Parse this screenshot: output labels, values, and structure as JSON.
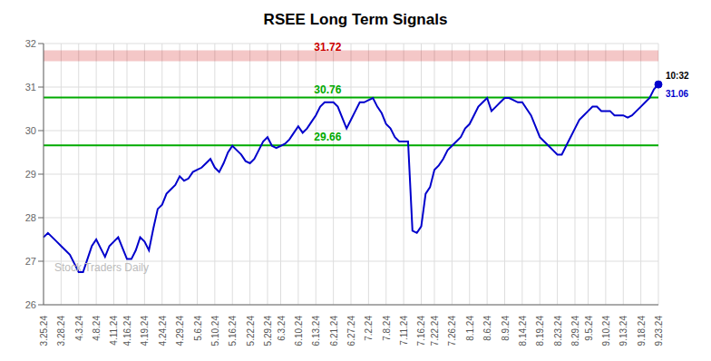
{
  "chart_data": {
    "type": "line",
    "title": "RSEE Long Term Signals",
    "color": "#0000cc",
    "grid": true,
    "ylim": [
      26,
      32
    ],
    "yticks": [
      26,
      27,
      28,
      29,
      30,
      31,
      32
    ],
    "categories": [
      "3.25.24",
      null,
      null,
      null,
      "3.28.24",
      null,
      null,
      null,
      "4.3.24",
      null,
      null,
      null,
      "4.8.24",
      null,
      null,
      null,
      "4.11.24",
      null,
      null,
      "4.16.24",
      null,
      null,
      null,
      "4.19.24",
      null,
      null,
      null,
      "4.24.24",
      null,
      null,
      null,
      "4.29.24",
      null,
      null,
      null,
      "5.6.24",
      null,
      null,
      null,
      "5.10.24",
      null,
      null,
      null,
      "5.16.24",
      null,
      null,
      null,
      "5.22.24",
      null,
      null,
      null,
      "5.29.24",
      null,
      null,
      "6.3.24",
      null,
      null,
      null,
      "6.10.24",
      null,
      null,
      null,
      "6.13.24",
      null,
      null,
      null,
      "6.21.24",
      null,
      null,
      null,
      "6.27.24",
      null,
      null,
      null,
      "7.2.24",
      null,
      null,
      null,
      "7.8.24",
      null,
      null,
      null,
      "7.11.24",
      null,
      null,
      null,
      "7.16.24",
      null,
      null,
      "7.22.24",
      null,
      null,
      null,
      "7.26.24",
      null,
      null,
      null,
      "8.1.24",
      null,
      null,
      null,
      "8.6.24",
      null,
      null,
      null,
      "8.9.24",
      null,
      null,
      null,
      "8.14.24",
      null,
      null,
      null,
      "8.19.24",
      null,
      null,
      null,
      "8.23.24",
      null,
      null,
      null,
      "8.29.24",
      null,
      null,
      "9.5.24",
      null,
      null,
      null,
      "9.10.24",
      null,
      null,
      null,
      "9.13.24",
      null,
      null,
      null,
      "9.18.24",
      null,
      null,
      null,
      "9.23.24"
    ],
    "values": [
      27.55,
      27.65,
      27.55,
      27.45,
      27.35,
      27.25,
      27.15,
      26.95,
      26.75,
      26.75,
      27.05,
      27.35,
      27.5,
      27.3,
      27.1,
      27.35,
      27.45,
      27.55,
      27.3,
      27.05,
      27.05,
      27.25,
      27.55,
      27.45,
      27.25,
      27.75,
      28.2,
      28.3,
      28.55,
      28.65,
      28.75,
      28.95,
      28.85,
      28.9,
      29.05,
      29.1,
      29.15,
      29.25,
      29.35,
      29.15,
      29.05,
      29.25,
      29.5,
      29.65,
      29.55,
      29.45,
      29.3,
      29.25,
      29.35,
      29.55,
      29.75,
      29.85,
      29.65,
      29.6,
      29.65,
      29.7,
      29.8,
      29.95,
      30.1,
      29.95,
      30.05,
      30.2,
      30.35,
      30.55,
      30.65,
      30.65,
      30.65,
      30.55,
      30.3,
      30.05,
      30.25,
      30.45,
      30.65,
      30.65,
      30.7,
      30.75,
      30.55,
      30.4,
      30.15,
      30.05,
      29.85,
      29.75,
      29.75,
      29.75,
      27.7,
      27.65,
      27.8,
      28.55,
      28.7,
      29.1,
      29.2,
      29.35,
      29.55,
      29.65,
      29.75,
      29.85,
      30.05,
      30.15,
      30.35,
      30.55,
      30.65,
      30.75,
      30.45,
      30.55,
      30.65,
      30.75,
      30.75,
      30.7,
      30.65,
      30.65,
      30.5,
      30.35,
      30.1,
      29.85,
      29.75,
      29.65,
      29.55,
      29.45,
      29.45,
      29.65,
      29.85,
      30.05,
      30.25,
      30.35,
      30.45,
      30.55,
      30.55,
      30.45,
      30.45,
      30.45,
      30.35,
      30.35,
      30.35,
      30.3,
      30.35,
      30.45,
      30.55,
      30.65,
      30.75,
      30.95,
      31.06
    ],
    "reference_lines": [
      {
        "value": 31.72,
        "label": "31.72",
        "color": "#cc0000"
      },
      {
        "value": 30.76,
        "label": "30.76",
        "color": "#00aa00"
      },
      {
        "value": 29.66,
        "label": "29.66",
        "color": "#00aa00"
      }
    ],
    "annotations": [
      "10:32"
    ],
    "watermark": "Stock Traders Daily"
  }
}
